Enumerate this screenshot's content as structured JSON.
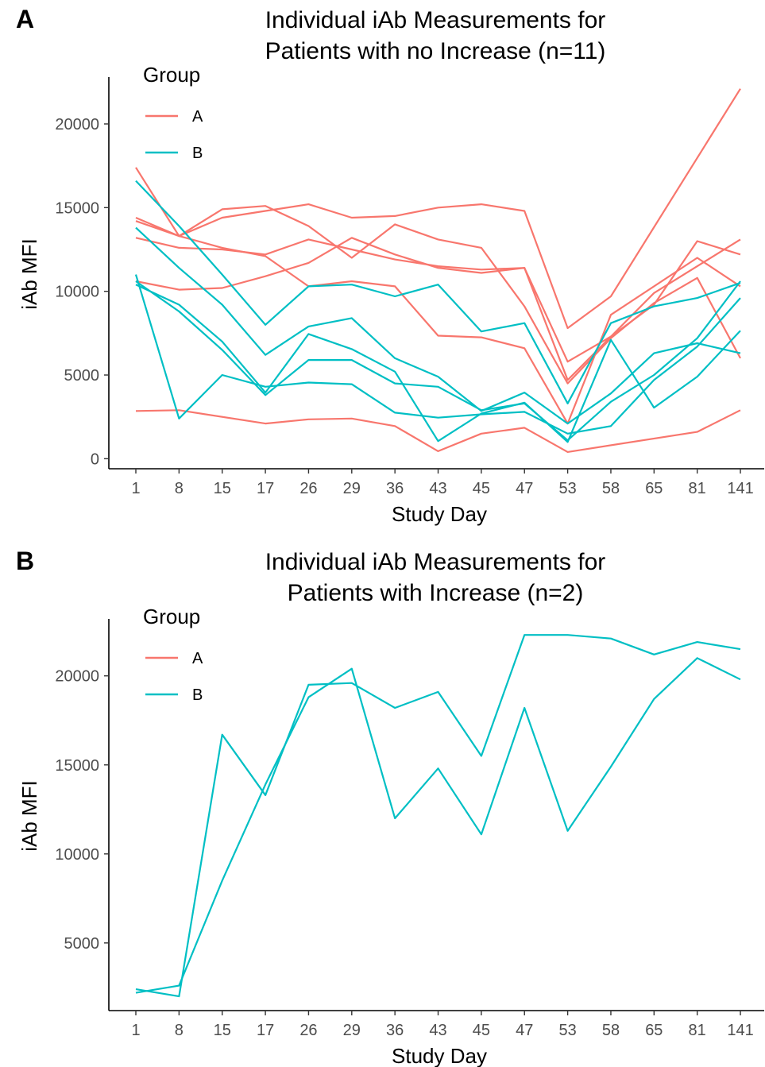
{
  "colors": {
    "A": "#F8766D",
    "B": "#00BFC4"
  },
  "chart_data": [
    {
      "panel": "A",
      "type": "line",
      "title": [
        "Individual iAb Measurements for",
        "Patients with no Increase (n=11)"
      ],
      "xlabel": "Study Day",
      "ylabel": "iAb MFI",
      "x": [
        "1",
        "8",
        "15",
        "17",
        "26",
        "29",
        "36",
        "43",
        "45",
        "47",
        "53",
        "58",
        "65",
        "81",
        "141"
      ],
      "ylim": [
        -600,
        22800
      ],
      "yticks": [
        0,
        5000,
        10000,
        15000,
        20000
      ],
      "legend": {
        "title": "Group",
        "entries": [
          "A",
          "B"
        ],
        "placement": "top-left"
      },
      "series": [
        {
          "group": "A",
          "values": [
            17400,
            13300,
            12600,
            12100,
            10300,
            10600,
            10300,
            7350,
            7250,
            6600,
            2100,
            8600,
            null,
            12000,
            10300
          ]
        },
        {
          "group": "A",
          "values": [
            14400,
            13300,
            14900,
            15100,
            13900,
            12000,
            14000,
            13100,
            12600,
            9100,
            4500,
            7200,
            9300,
            10800,
            6000
          ]
        },
        {
          "group": "A",
          "values": [
            14200,
            13300,
            14400,
            14800,
            15200,
            14400,
            14500,
            15000,
            15200,
            14800,
            7800,
            9700,
            null,
            null,
            22100
          ]
        },
        {
          "group": "A",
          "values": [
            13200,
            12600,
            12500,
            12200,
            13100,
            12500,
            11900,
            11500,
            11300,
            11400,
            5800,
            7300,
            9900,
            null,
            13100
          ]
        },
        {
          "group": "A",
          "values": [
            10600,
            10100,
            10200,
            10900,
            11700,
            13200,
            12200,
            11400,
            11100,
            11400,
            4700,
            7300,
            9200,
            13000,
            12200
          ]
        },
        {
          "group": "A",
          "values": [
            2850,
            2900,
            null,
            2100,
            2350,
            2400,
            1950,
            450,
            1500,
            1850,
            400,
            null,
            null,
            1600,
            2900
          ]
        },
        {
          "group": "B",
          "values": [
            16600,
            13900,
            11000,
            8000,
            10300,
            10400,
            9700,
            10400,
            7600,
            8100,
            3300,
            8100,
            9100,
            9600,
            10500
          ]
        },
        {
          "group": "B",
          "values": [
            13800,
            11400,
            9200,
            6200,
            7900,
            8400,
            6000,
            4900,
            2850,
            3950,
            2100,
            3900,
            6300,
            6900,
            6300
          ]
        },
        {
          "group": "B",
          "values": [
            11000,
            2400,
            5000,
            4300,
            4550,
            4450,
            2750,
            2450,
            2650,
            2800,
            1500,
            1950,
            4700,
            6700,
            9600
          ]
        },
        {
          "group": "B",
          "values": [
            10400,
            9200,
            7000,
            3950,
            7450,
            6550,
            5200,
            1050,
            2700,
            3350,
            1000,
            7100,
            3050,
            4900,
            7650
          ]
        },
        {
          "group": "B",
          "values": [
            10600,
            8800,
            6500,
            3800,
            5900,
            5900,
            4500,
            4300,
            2900,
            3300,
            1100,
            3400,
            5000,
            7200,
            10600
          ]
        }
      ]
    },
    {
      "panel": "B",
      "type": "line",
      "title": [
        "Individual iAb Measurements for",
        "Patients with Increase (n=2)"
      ],
      "xlabel": "Study Day",
      "ylabel": "iAb MFI",
      "x": [
        "1",
        "8",
        "15",
        "17",
        "26",
        "29",
        "36",
        "43",
        "45",
        "47",
        "53",
        "58",
        "65",
        "81",
        "141"
      ],
      "ylim": [
        1200,
        23200
      ],
      "yticks": [
        5000,
        10000,
        15000,
        20000
      ],
      "legend": {
        "title": "Group",
        "entries": [
          "A",
          "B"
        ],
        "placement": "top-left"
      },
      "series": [
        {
          "group": "B",
          "values": [
            2400,
            2000,
            16700,
            13300,
            19500,
            19600,
            18200,
            19100,
            15500,
            22300,
            22300,
            22100,
            21200,
            21900,
            21500
          ]
        },
        {
          "group": "B",
          "values": [
            2200,
            2600,
            8500,
            13900,
            18800,
            20400,
            12000,
            14800,
            11100,
            18200,
            11300,
            14900,
            18700,
            21000,
            19800
          ]
        }
      ]
    }
  ]
}
